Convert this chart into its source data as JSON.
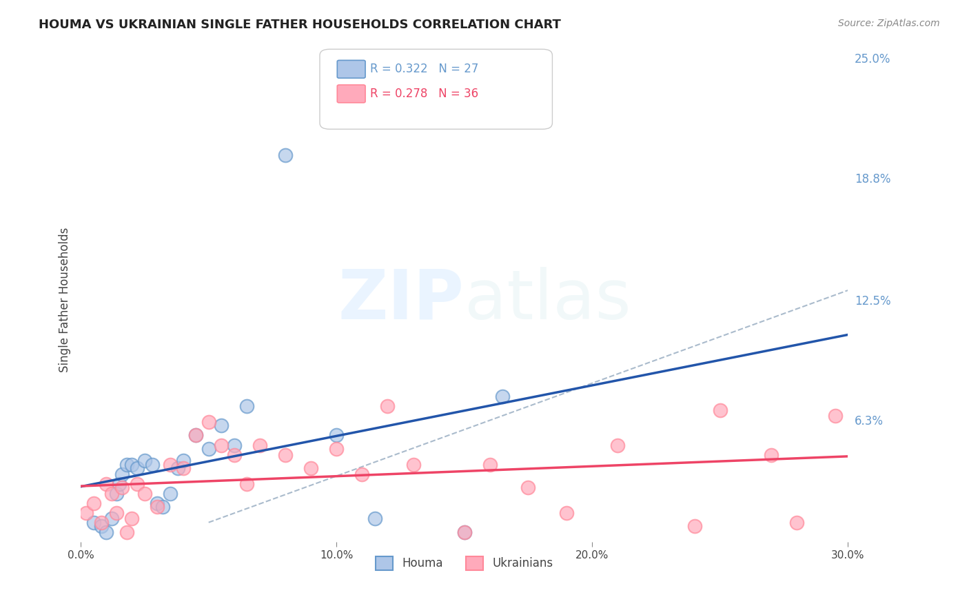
{
  "title": "HOUMA VS UKRAINIAN SINGLE FATHER HOUSEHOLDS CORRELATION CHART",
  "source": "Source: ZipAtlas.com",
  "xlabel": "",
  "ylabel": "Single Father Households",
  "xlim": [
    0.0,
    0.3
  ],
  "ylim": [
    0.0,
    0.25
  ],
  "xticks": [
    0.0,
    0.1,
    0.2,
    0.3
  ],
  "xtick_labels": [
    "0.0%",
    "10.0%",
    "20.0%",
    "30.0%"
  ],
  "ytick_labels_right": [
    "6.3%",
    "12.5%",
    "18.8%",
    "25.0%"
  ],
  "ytick_vals_right": [
    0.063,
    0.125,
    0.188,
    0.25
  ],
  "houma_R": 0.322,
  "houma_N": 27,
  "ukr_R": 0.278,
  "ukr_N": 36,
  "houma_scatter_face": "#AEC6E8",
  "houma_scatter_edge": "#6699CC",
  "ukr_scatter_face": "#FFAABB",
  "ukr_scatter_edge": "#FF8899",
  "houma_line_color": "#2255AA",
  "ukr_line_color": "#EE4466",
  "dashed_line_color": "#AABBCC",
  "background_color": "#FFFFFF",
  "legend_text_houma": "R = 0.322   N = 27",
  "legend_text_ukr": "R = 0.278   N = 36",
  "legend_label_houma": "Houma",
  "legend_label_ukr": "Ukrainians",
  "houma_x": [
    0.005,
    0.008,
    0.01,
    0.012,
    0.014,
    0.015,
    0.016,
    0.018,
    0.02,
    0.022,
    0.025,
    0.028,
    0.03,
    0.032,
    0.035,
    0.038,
    0.04,
    0.045,
    0.05,
    0.055,
    0.06,
    0.065,
    0.1,
    0.115,
    0.15,
    0.165,
    0.08
  ],
  "houma_y": [
    0.01,
    0.008,
    0.005,
    0.012,
    0.025,
    0.03,
    0.035,
    0.04,
    0.04,
    0.038,
    0.042,
    0.04,
    0.02,
    0.018,
    0.025,
    0.038,
    0.042,
    0.055,
    0.048,
    0.06,
    0.05,
    0.07,
    0.055,
    0.012,
    0.005,
    0.075,
    0.2
  ],
  "ukr_x": [
    0.002,
    0.005,
    0.008,
    0.01,
    0.012,
    0.014,
    0.016,
    0.018,
    0.02,
    0.022,
    0.025,
    0.03,
    0.035,
    0.04,
    0.045,
    0.05,
    0.055,
    0.06,
    0.065,
    0.07,
    0.08,
    0.09,
    0.1,
    0.11,
    0.12,
    0.13,
    0.15,
    0.16,
    0.175,
    0.19,
    0.21,
    0.24,
    0.25,
    0.27,
    0.28,
    0.295
  ],
  "ukr_y": [
    0.015,
    0.02,
    0.01,
    0.03,
    0.025,
    0.015,
    0.028,
    0.005,
    0.012,
    0.03,
    0.025,
    0.018,
    0.04,
    0.038,
    0.055,
    0.062,
    0.05,
    0.045,
    0.03,
    0.05,
    0.045,
    0.038,
    0.048,
    0.035,
    0.07,
    0.04,
    0.005,
    0.04,
    0.028,
    0.015,
    0.05,
    0.008,
    0.068,
    0.045,
    0.01,
    0.065
  ]
}
